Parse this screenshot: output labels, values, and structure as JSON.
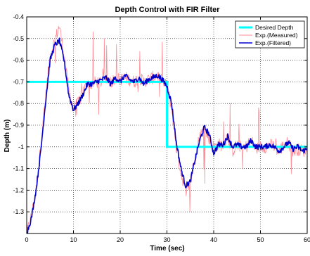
{
  "chart_data": {
    "type": "line",
    "title": "Depth Control with FIR Filter",
    "xlabel": "Time (sec)",
    "ylabel": "Depth (m)",
    "xlim": [
      0,
      60
    ],
    "ylim": [
      -1.4,
      -0.4
    ],
    "x_reversed": false,
    "y_reversed": true,
    "grid": true,
    "legend_position": "top-right",
    "x_ticks": [
      0,
      10,
      20,
      30,
      40,
      50,
      60
    ],
    "x_tick_labels": [
      "0",
      "10",
      "20",
      "30",
      "40",
      "50",
      "60"
    ],
    "y_ticks": [
      -0.4,
      -0.5,
      -0.6,
      -0.7,
      -0.8,
      -0.9,
      -1.0,
      -1.1,
      -1.2,
      -1.3
    ],
    "y_tick_labels": [
      "-0.4",
      "-0.5",
      "-0.6",
      "-0.7",
      "-0.8",
      "-0.9",
      "-1",
      "-1.1",
      "-1.2",
      "-1.3"
    ],
    "series": [
      {
        "name": "Desired Depth",
        "color": "#00ffff",
        "style": "thick",
        "x": [
          0,
          30,
          30,
          60
        ],
        "y": [
          -0.7,
          -0.7,
          -1.0,
          -1.0
        ]
      },
      {
        "name": "Exp.(Measured)",
        "color": "#ff8c96",
        "style": "thin-noisy",
        "noise_amplitude": 0.06,
        "x": [
          0,
          1,
          2,
          3,
          4,
          5,
          6,
          7,
          8,
          9,
          10,
          11,
          12,
          13,
          14,
          15,
          16,
          17,
          18,
          19,
          20,
          21,
          22,
          23,
          24,
          25,
          26,
          27,
          28,
          29,
          30,
          31,
          32,
          33,
          34,
          35,
          36,
          37,
          38,
          39,
          40,
          41,
          42,
          43,
          44,
          45,
          46,
          47,
          48,
          49,
          50,
          51,
          52,
          53,
          54,
          55,
          56,
          57,
          58,
          59,
          60
        ],
        "y": [
          -1.4,
          -1.32,
          -1.2,
          -1.0,
          -0.78,
          -0.58,
          -0.51,
          -0.44,
          -0.58,
          -0.74,
          -0.82,
          -0.8,
          -0.75,
          -0.7,
          -0.71,
          -0.7,
          -0.7,
          -0.68,
          -0.7,
          -0.68,
          -0.69,
          -0.68,
          -0.69,
          -0.7,
          -0.68,
          -0.7,
          -0.69,
          -0.68,
          -0.67,
          -0.7,
          -0.72,
          -0.82,
          -1.0,
          -1.12,
          -1.2,
          -1.17,
          -1.05,
          -0.95,
          -0.92,
          -0.96,
          -1.0,
          -0.99,
          -0.99,
          -0.95,
          -1.02,
          -0.99,
          -1.0,
          -1.0,
          -0.97,
          -1.01,
          -1.0,
          -1.0,
          -0.99,
          -1.0,
          -1.02,
          -0.99,
          -0.98,
          -1.02,
          -1.01,
          -1.02,
          -1.01
        ]
      },
      {
        "name": "Exp.(Filtered)",
        "color": "#0000cd",
        "style": "medium",
        "x": [
          0,
          1,
          2,
          3,
          4,
          5,
          6,
          7,
          8,
          9,
          10,
          11,
          12,
          13,
          14,
          15,
          16,
          17,
          18,
          19,
          20,
          21,
          22,
          23,
          24,
          25,
          26,
          27,
          28,
          29,
          30,
          31,
          32,
          33,
          34,
          35,
          36,
          37,
          38,
          39,
          40,
          41,
          42,
          43,
          44,
          45,
          46,
          47,
          48,
          49,
          50,
          51,
          52,
          53,
          54,
          55,
          56,
          57,
          58,
          59,
          60
        ],
        "y": [
          -1.4,
          -1.33,
          -1.2,
          -1.02,
          -0.8,
          -0.6,
          -0.53,
          -0.51,
          -0.6,
          -0.76,
          -0.83,
          -0.8,
          -0.76,
          -0.71,
          -0.71,
          -0.7,
          -0.69,
          -0.68,
          -0.71,
          -0.68,
          -0.7,
          -0.67,
          -0.69,
          -0.7,
          -0.68,
          -0.71,
          -0.69,
          -0.68,
          -0.67,
          -0.69,
          -0.72,
          -0.8,
          -0.98,
          -1.1,
          -1.18,
          -1.16,
          -1.06,
          -0.97,
          -0.91,
          -0.94,
          -1.03,
          -0.99,
          -0.99,
          -0.95,
          -1.0,
          -0.99,
          -1.0,
          -1.0,
          -0.97,
          -1.0,
          -1.0,
          -1.0,
          -0.99,
          -1.0,
          -1.02,
          -1.0,
          -0.98,
          -1.01,
          -1.0,
          -1.02,
          -1.01
        ]
      }
    ]
  }
}
